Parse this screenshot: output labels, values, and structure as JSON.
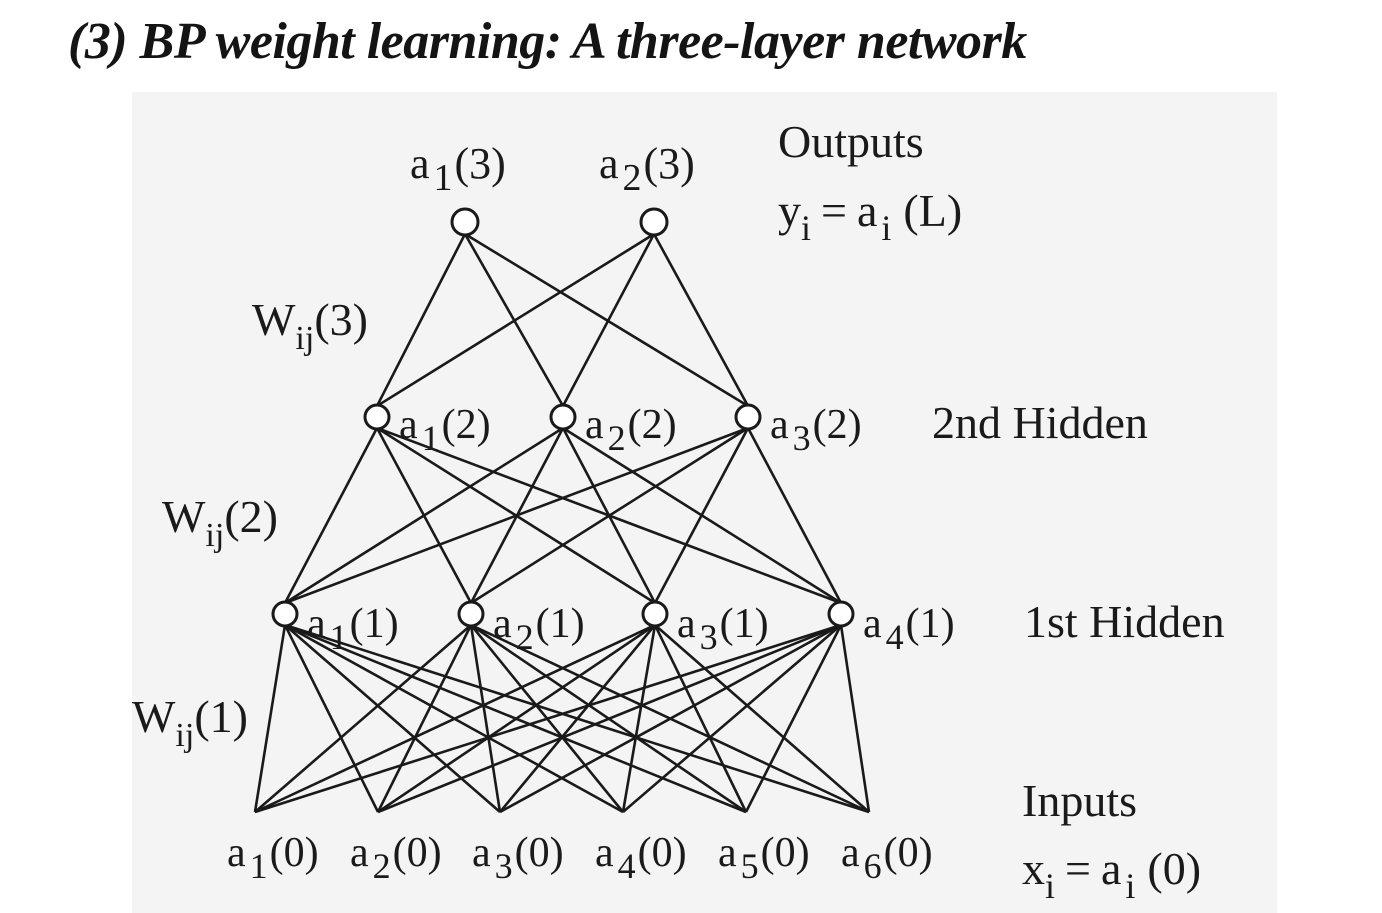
{
  "title": "(3) BP weight learning: A three-layer network",
  "colors": {
    "ink": "#1a1a1a",
    "panel": "#f4f4f4",
    "node_fill": "#ffffff"
  },
  "layers": [
    {
      "id": "input",
      "nodes": [
        "a 1(0)",
        "a 2(0)",
        "a 3(0)",
        "a 4(0)",
        "a 5(0)",
        "a 6(0)"
      ]
    },
    {
      "id": "hidden1",
      "nodes": [
        "a 1(1)",
        "a 2(1)",
        "a 3(1)",
        "a 4(1)"
      ]
    },
    {
      "id": "hidden2",
      "nodes": [
        "a 1(2)",
        "a 2(2)",
        "a 3(2)"
      ]
    },
    {
      "id": "output",
      "nodes": [
        "a 1(3)",
        "a 2(3)"
      ]
    }
  ],
  "labels": {
    "outputs": "Outputs",
    "outputs_eq": {
      "var": "y",
      "var_sub": "i",
      "eq": "=",
      "a": "a",
      "a_sub": "i",
      "arg": "(L)"
    },
    "hidden2": "2nd Hidden",
    "hidden1": "1st Hidden",
    "inputs": "Inputs",
    "inputs_eq": {
      "var": "x",
      "var_sub": "i",
      "eq": "=",
      "a": "a",
      "a_sub": "i",
      "arg": "(0)"
    }
  },
  "weights": [
    {
      "w": "W",
      "sub": "ij",
      "arg": "(3)"
    },
    {
      "w": "W",
      "sub": "ij",
      "arg": "(2)"
    },
    {
      "w": "W",
      "sub": "ij",
      "arg": "(1)"
    }
  ]
}
